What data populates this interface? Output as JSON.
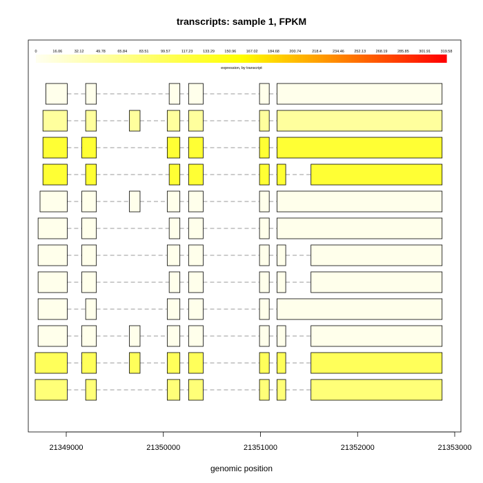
{
  "chart_data": {
    "type": "transcript-expression",
    "title": "transcripts: sample 1, FPKM",
    "xlabel": "genomic position",
    "xlim": [
      21348600,
      21353000
    ],
    "x_ticks": [
      21349000,
      21350000,
      21351000,
      21352000,
      21353000
    ],
    "x_tick_labels": [
      "21349000",
      "21350000",
      "21351000",
      "21352000",
      "21353000"
    ],
    "colorbar": {
      "caption": "expression, by transcript",
      "min": 0,
      "max": 319.58,
      "labels": [
        "0",
        "16.06",
        "32.12",
        "49.78",
        "65.84",
        "83.51",
        "99.57",
        "117.23",
        "133.29",
        "150.96",
        "167.02",
        "184.68",
        "200.74",
        "218.4",
        "234.46",
        "252.13",
        "268.19",
        "285.85",
        "301.91",
        "319.58"
      ],
      "color_low": "#fffff0",
      "color_mid": "#ffff00",
      "color_high": "#ff0000"
    },
    "transcripts": [
      {
        "fpkm": 3,
        "exons": [
          [
            21348790,
            21349010
          ],
          [
            21349200,
            21349310
          ],
          [
            21350060,
            21350170
          ],
          [
            21350260,
            21350410
          ],
          [
            21350990,
            21351090
          ],
          [
            21351170,
            21352870
          ]
        ]
      },
      {
        "fpkm": 55,
        "exons": [
          [
            21348760,
            21349010
          ],
          [
            21349200,
            21349310
          ],
          [
            21349650,
            21349760
          ],
          [
            21350040,
            21350170
          ],
          [
            21350260,
            21350410
          ],
          [
            21350990,
            21351090
          ],
          [
            21351170,
            21352870
          ]
        ]
      },
      {
        "fpkm": 125,
        "exons": [
          [
            21348760,
            21349010
          ],
          [
            21349160,
            21349310
          ],
          [
            21350040,
            21350170
          ],
          [
            21350260,
            21350410
          ],
          [
            21350990,
            21351090
          ],
          [
            21351170,
            21352870
          ]
        ]
      },
      {
        "fpkm": 125,
        "exons": [
          [
            21348760,
            21349010
          ],
          [
            21349200,
            21349310
          ],
          [
            21350060,
            21350170
          ],
          [
            21350260,
            21350410
          ],
          [
            21350990,
            21351090
          ],
          [
            21351170,
            21351260
          ],
          [
            21351520,
            21352870
          ]
        ]
      },
      {
        "fpkm": 3,
        "exons": [
          [
            21348730,
            21349010
          ],
          [
            21349160,
            21349310
          ],
          [
            21349650,
            21349760
          ],
          [
            21350040,
            21350170
          ],
          [
            21350260,
            21350410
          ],
          [
            21350990,
            21351090
          ],
          [
            21351170,
            21352870
          ]
        ]
      },
      {
        "fpkm": 3,
        "exons": [
          [
            21348710,
            21349010
          ],
          [
            21349160,
            21349310
          ],
          [
            21350060,
            21350170
          ],
          [
            21350260,
            21350410
          ],
          [
            21350990,
            21351090
          ],
          [
            21351170,
            21352870
          ]
        ]
      },
      {
        "fpkm": 3,
        "exons": [
          [
            21348710,
            21349010
          ],
          [
            21349160,
            21349310
          ],
          [
            21350040,
            21350170
          ],
          [
            21350260,
            21350410
          ],
          [
            21350990,
            21351090
          ],
          [
            21351170,
            21351260
          ],
          [
            21351520,
            21352870
          ]
        ]
      },
      {
        "fpkm": 3,
        "exons": [
          [
            21348710,
            21349010
          ],
          [
            21349160,
            21349310
          ],
          [
            21350060,
            21350170
          ],
          [
            21350260,
            21350410
          ],
          [
            21350990,
            21351090
          ],
          [
            21351170,
            21351260
          ],
          [
            21351520,
            21352870
          ]
        ]
      },
      {
        "fpkm": 3,
        "exons": [
          [
            21348710,
            21349010
          ],
          [
            21349200,
            21349310
          ],
          [
            21350040,
            21350170
          ],
          [
            21350260,
            21350410
          ],
          [
            21350990,
            21351090
          ],
          [
            21351170,
            21352870
          ]
        ]
      },
      {
        "fpkm": 3,
        "exons": [
          [
            21348710,
            21349010
          ],
          [
            21349160,
            21349310
          ],
          [
            21349650,
            21349760
          ],
          [
            21350040,
            21350170
          ],
          [
            21350260,
            21350410
          ],
          [
            21350990,
            21351090
          ],
          [
            21351170,
            21351260
          ],
          [
            21351520,
            21352870
          ]
        ]
      },
      {
        "fpkm": 100,
        "exons": [
          [
            21348680,
            21349010
          ],
          [
            21349160,
            21349310
          ],
          [
            21349650,
            21349760
          ],
          [
            21350040,
            21350170
          ],
          [
            21350260,
            21350410
          ],
          [
            21350990,
            21351090
          ],
          [
            21351170,
            21351260
          ],
          [
            21351520,
            21352870
          ]
        ]
      },
      {
        "fpkm": 80,
        "exons": [
          [
            21348680,
            21349010
          ],
          [
            21349200,
            21349310
          ],
          [
            21350040,
            21350170
          ],
          [
            21350260,
            21350410
          ],
          [
            21350990,
            21351090
          ],
          [
            21351170,
            21351260
          ],
          [
            21351520,
            21352870
          ]
        ]
      }
    ]
  }
}
